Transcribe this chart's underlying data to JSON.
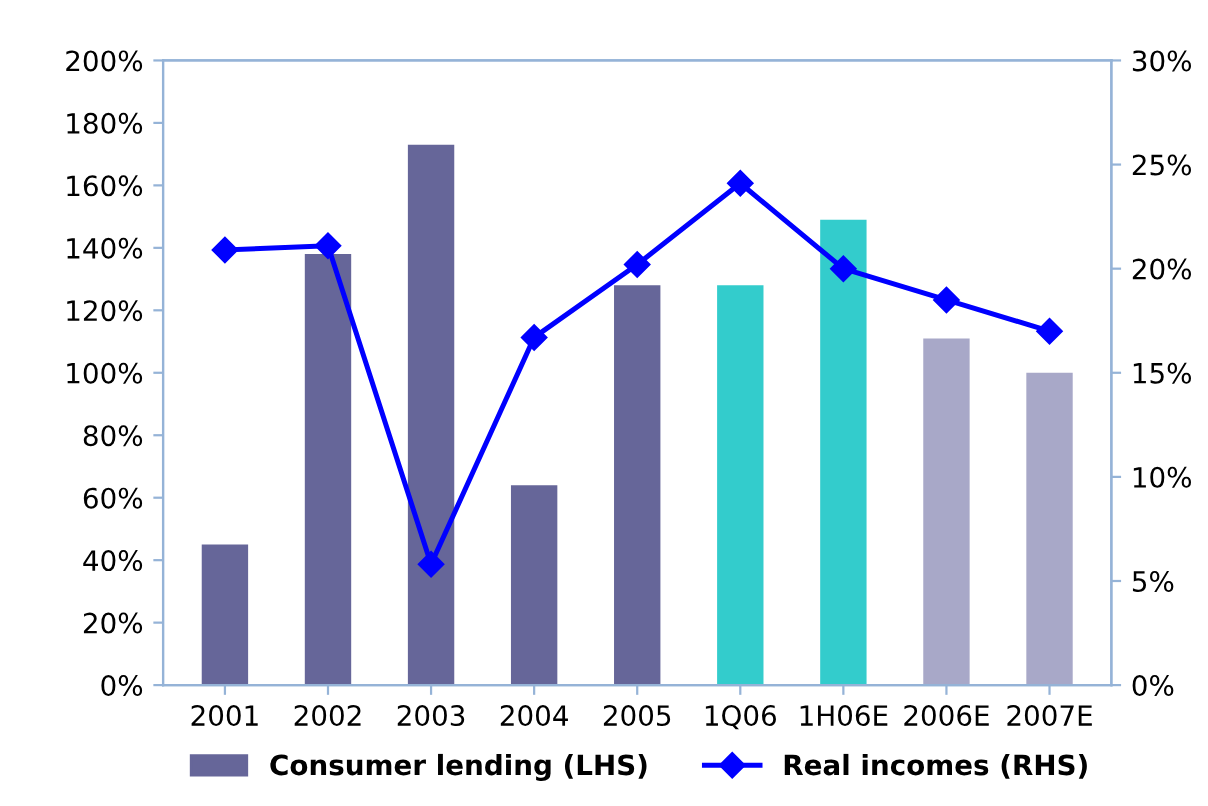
{
  "chart_data": {
    "type": "bar",
    "categories": [
      "2001",
      "2002",
      "2003",
      "2004",
      "2005",
      "1Q06",
      "1H06E",
      "2006E",
      "2007E"
    ],
    "series": [
      {
        "name": "Consumer lending (LHS)",
        "colors": [
          "#666699",
          "#666699",
          "#666699",
          "#666699",
          "#666699",
          "#33cccc",
          "#33cccc",
          "#a8a8c8",
          "#a8a8c8"
        ],
        "values": [
          45,
          138,
          173,
          64,
          128,
          128,
          149,
          111,
          100
        ]
      },
      {
        "name": "Real incomes (RHS)",
        "type": "line",
        "axis": "y2",
        "color": "#0000ff",
        "marker": "diamond",
        "values": [
          20.9,
          21.1,
          5.8,
          16.7,
          20.2,
          24.1,
          20.0,
          18.5,
          17.0
        ]
      }
    ],
    "ylim": [
      0,
      200
    ],
    "yticks": [
      {
        "value": 0,
        "label": "0%"
      },
      {
        "value": 20,
        "label": "20%"
      },
      {
        "value": 40,
        "label": "40%"
      },
      {
        "value": 60,
        "label": "60%"
      },
      {
        "value": 80,
        "label": "80%"
      },
      {
        "value": 100,
        "label": "100%"
      },
      {
        "value": 120,
        "label": "120%"
      },
      {
        "value": 140,
        "label": "140%"
      },
      {
        "value": 160,
        "label": "160%"
      },
      {
        "value": 180,
        "label": "180%"
      },
      {
        "value": 200,
        "label": "200%"
      }
    ],
    "y2lim": [
      0,
      30
    ],
    "y2ticks": [
      {
        "value": 0,
        "label": "0%"
      },
      {
        "value": 5,
        "label": "5%"
      },
      {
        "value": 10,
        "label": "10%"
      },
      {
        "value": 15,
        "label": "15%"
      },
      {
        "value": 20,
        "label": "20%"
      },
      {
        "value": 25,
        "label": "25%"
      },
      {
        "value": 30,
        "label": "30%"
      }
    ],
    "legend": "bottom",
    "grid": false
  }
}
